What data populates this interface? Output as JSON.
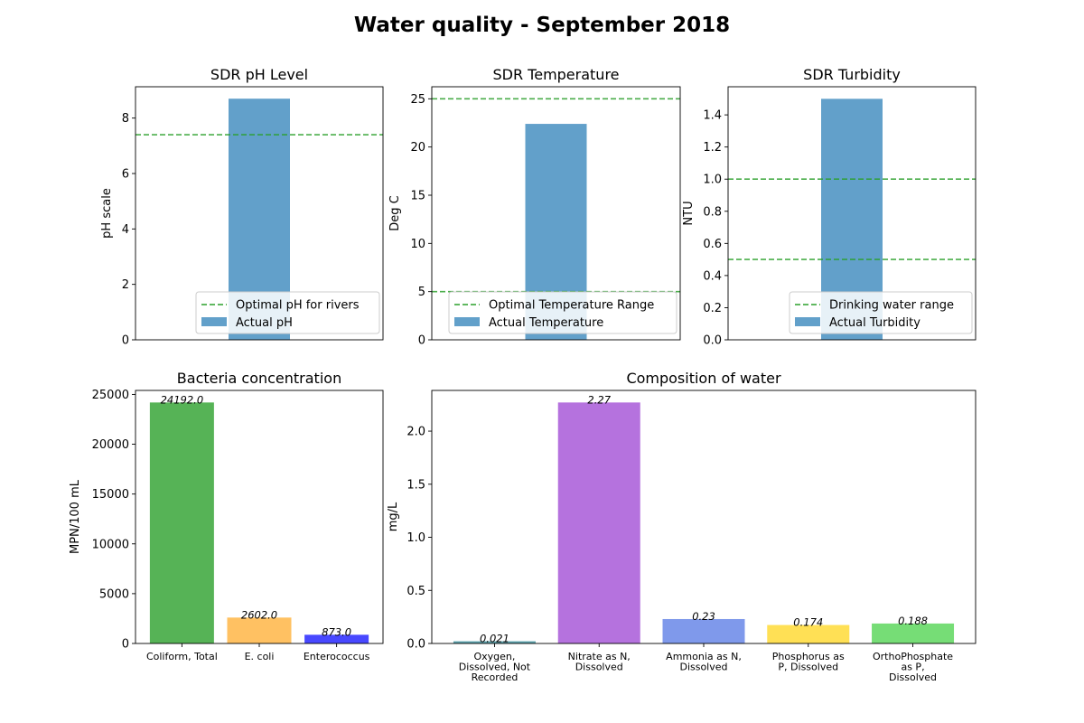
{
  "figure": {
    "title": "Water quality - September 2018"
  },
  "chart_data": [
    {
      "id": "ph",
      "type": "bar",
      "title": "SDR pH Level",
      "xlabel": "",
      "ylabel": "pH scale",
      "ylim": [
        0,
        9.13
      ],
      "yticks": [
        0,
        2,
        4,
        6,
        8
      ],
      "tick_decimals": 0,
      "series": [
        {
          "name": "Actual pH",
          "values": [
            8.7
          ],
          "color": "#1f77b4"
        }
      ],
      "reference_lines": [
        {
          "label": "Optimal pH for rivers",
          "values": [
            7.4
          ],
          "color": "#2ca02c"
        }
      ],
      "grid": false,
      "legend": "lower right"
    },
    {
      "id": "temperature",
      "type": "bar",
      "title": "SDR Temperature",
      "xlabel": "",
      "ylabel": "Deg C",
      "ylim": [
        0,
        26.25
      ],
      "yticks": [
        0,
        5,
        10,
        15,
        20,
        25
      ],
      "tick_decimals": 0,
      "series": [
        {
          "name": "Actual Temperature",
          "values": [
            22.4
          ],
          "color": "#1f77b4"
        }
      ],
      "reference_lines": [
        {
          "label": "Optimal Temperature Range",
          "values": [
            5,
            25
          ],
          "color": "#2ca02c"
        }
      ],
      "grid": false,
      "legend": "lower right"
    },
    {
      "id": "turbidity",
      "type": "bar",
      "title": "SDR Turbidity",
      "xlabel": "",
      "ylabel": "NTU",
      "ylim": [
        0,
        1.575
      ],
      "yticks": [
        0.0,
        0.2,
        0.4,
        0.6,
        0.8,
        1.0,
        1.2,
        1.4
      ],
      "tick_decimals": 1,
      "series": [
        {
          "name": "Actual Turbidity",
          "values": [
            1.5
          ],
          "color": "#1f77b4"
        }
      ],
      "reference_lines": [
        {
          "label": "Drinking water range",
          "values": [
            0.5,
            1.0
          ],
          "color": "#2ca02c"
        }
      ],
      "grid": false,
      "legend": "lower right"
    },
    {
      "id": "bacteria",
      "type": "bar",
      "title": "Bacteria concentration",
      "xlabel": "",
      "ylabel": "MPN/100 mL",
      "ylim": [
        0,
        25402
      ],
      "yticks": [
        0,
        5000,
        10000,
        15000,
        20000,
        25000
      ],
      "tick_decimals": 0,
      "categories": [
        [
          "Coliform, Total"
        ],
        [
          "E. coli"
        ],
        [
          "Enterococcus"
        ]
      ],
      "values": [
        24192.0,
        2602.0,
        873.0
      ],
      "labels": [
        "24192.0",
        "2602.0",
        "873.0"
      ],
      "colors": [
        "#2ca02c",
        "#ffb13b",
        "#1a1aff"
      ],
      "grid": false
    },
    {
      "id": "composition",
      "type": "bar",
      "title": "Composition of water",
      "xlabel": "",
      "ylabel": "mg/L",
      "ylim": [
        0,
        2.3835
      ],
      "yticks": [
        0.0,
        0.5,
        1.0,
        1.5,
        2.0
      ],
      "tick_decimals": 1,
      "categories": [
        [
          "Oxygen,",
          "Dissolved, Not",
          "Recorded"
        ],
        [
          "Nitrate as N,",
          "Dissolved"
        ],
        [
          "Ammonia as N,",
          "Dissolved"
        ],
        [
          "Phosphorus as",
          "P, Dissolved"
        ],
        [
          "OrthoPhosphate",
          "as P,",
          "Dissolved"
        ]
      ],
      "values": [
        0.021,
        2.27,
        0.23,
        0.174,
        0.188
      ],
      "labels": [
        "0.021",
        "2.27",
        "0.23",
        "0.174",
        "0.188"
      ],
      "colors": [
        "#3a8f9a",
        "#a24fd6",
        "#5f7fe6",
        "#ffd82a",
        "#54d454"
      ],
      "grid": false
    }
  ]
}
